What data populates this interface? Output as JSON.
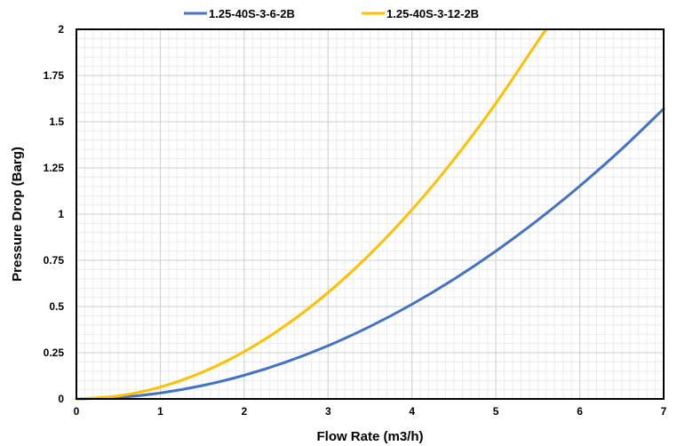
{
  "chart_data": {
    "type": "line",
    "xlabel": "Flow Rate (m3/h)",
    "ylabel": "Pressure Drop (Barg)",
    "xlim": [
      0,
      7
    ],
    "ylim": [
      0,
      2
    ],
    "x_ticks": [
      "0",
      "1",
      "2",
      "3",
      "4",
      "5",
      "6",
      "7"
    ],
    "y_ticks": [
      "0",
      "0.25",
      "0.5",
      "0.75",
      "1",
      "1.25",
      "1.5",
      "1.75",
      "2"
    ],
    "grid": "major and minor",
    "legend_position": "top",
    "series": [
      {
        "name": "1.25-40S-3-6-2B",
        "color": "#4472C4",
        "x": [
          0,
          0.5,
          1,
          1.5,
          2,
          2.5,
          3,
          3.5,
          4,
          4.5,
          5,
          5.5,
          6,
          6.5,
          7
        ],
        "y": [
          0,
          0.008,
          0.032,
          0.072,
          0.128,
          0.2,
          0.288,
          0.392,
          0.512,
          0.648,
          0.8,
          0.968,
          1.152,
          1.352,
          1.57
        ]
      },
      {
        "name": "1.25-40S-3-12-2B",
        "color": "#FFC000",
        "x": [
          0,
          0.5,
          1,
          1.5,
          2,
          2.5,
          3,
          3.5,
          4,
          4.5,
          5,
          5.5,
          5.6
        ],
        "y": [
          0,
          0.016,
          0.064,
          0.144,
          0.256,
          0.4,
          0.576,
          0.784,
          1.024,
          1.296,
          1.6,
          1.936,
          2.0
        ]
      }
    ]
  }
}
